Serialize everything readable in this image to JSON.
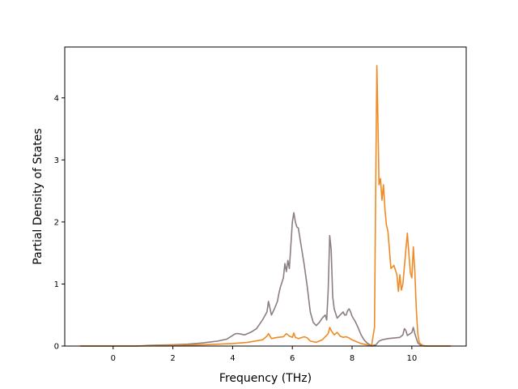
{
  "chart_data": {
    "type": "line",
    "title": "",
    "xlabel": "Frequency (THz)",
    "ylabel": "Partial Density of States",
    "xlim": [
      -1.62,
      11.82
    ],
    "ylim": [
      0,
      4.82
    ],
    "xticks": [
      0,
      2,
      4,
      6,
      8,
      10
    ],
    "yticks": [
      0,
      1,
      2,
      3,
      4
    ],
    "grid": false,
    "legend": "none",
    "series": [
      {
        "color": "#8c7e80",
        "points": [
          [
            -1.1,
            0
          ],
          [
            0.8,
            0
          ],
          [
            1.2,
            0.01
          ],
          [
            2.0,
            0.02
          ],
          [
            2.5,
            0.03
          ],
          [
            3.0,
            0.05
          ],
          [
            3.5,
            0.08
          ],
          [
            3.8,
            0.11
          ],
          [
            4.0,
            0.17
          ],
          [
            4.1,
            0.2
          ],
          [
            4.2,
            0.2
          ],
          [
            4.4,
            0.18
          ],
          [
            4.6,
            0.22
          ],
          [
            4.8,
            0.28
          ],
          [
            5.0,
            0.42
          ],
          [
            5.15,
            0.55
          ],
          [
            5.2,
            0.72
          ],
          [
            5.3,
            0.5
          ],
          [
            5.4,
            0.6
          ],
          [
            5.5,
            0.72
          ],
          [
            5.55,
            0.85
          ],
          [
            5.6,
            0.95
          ],
          [
            5.7,
            1.1
          ],
          [
            5.75,
            1.33
          ],
          [
            5.8,
            1.2
          ],
          [
            5.85,
            1.38
          ],
          [
            5.9,
            1.25
          ],
          [
            6.0,
            2.0
          ],
          [
            6.05,
            2.15
          ],
          [
            6.1,
            2.0
          ],
          [
            6.15,
            1.92
          ],
          [
            6.2,
            1.9
          ],
          [
            6.3,
            1.6
          ],
          [
            6.4,
            1.3
          ],
          [
            6.5,
            0.95
          ],
          [
            6.6,
            0.55
          ],
          [
            6.7,
            0.38
          ],
          [
            6.8,
            0.33
          ],
          [
            6.9,
            0.38
          ],
          [
            7.0,
            0.45
          ],
          [
            7.1,
            0.5
          ],
          [
            7.15,
            0.42
          ],
          [
            7.2,
            0.9
          ],
          [
            7.25,
            1.78
          ],
          [
            7.3,
            1.55
          ],
          [
            7.35,
            0.8
          ],
          [
            7.4,
            0.6
          ],
          [
            7.5,
            0.45
          ],
          [
            7.6,
            0.5
          ],
          [
            7.7,
            0.55
          ],
          [
            7.75,
            0.5
          ],
          [
            7.8,
            0.5
          ],
          [
            7.85,
            0.57
          ],
          [
            7.9,
            0.6
          ],
          [
            7.95,
            0.55
          ],
          [
            8.0,
            0.48
          ],
          [
            8.1,
            0.4
          ],
          [
            8.2,
            0.3
          ],
          [
            8.3,
            0.18
          ],
          [
            8.4,
            0.1
          ],
          [
            8.5,
            0.05
          ],
          [
            8.6,
            0.02
          ],
          [
            8.7,
            0.01
          ],
          [
            8.8,
            0.02
          ],
          [
            8.9,
            0.08
          ],
          [
            9.0,
            0.1
          ],
          [
            9.1,
            0.11
          ],
          [
            9.2,
            0.12
          ],
          [
            9.4,
            0.13
          ],
          [
            9.6,
            0.14
          ],
          [
            9.7,
            0.18
          ],
          [
            9.75,
            0.28
          ],
          [
            9.8,
            0.25
          ],
          [
            9.85,
            0.17
          ],
          [
            9.95,
            0.2
          ],
          [
            10.0,
            0.22
          ],
          [
            10.05,
            0.3
          ],
          [
            10.1,
            0.2
          ],
          [
            10.2,
            0.05
          ],
          [
            10.3,
            0.01
          ],
          [
            10.5,
            0
          ],
          [
            11.3,
            0
          ]
        ]
      },
      {
        "color": "#f08a24",
        "points": [
          [
            -1.1,
            0
          ],
          [
            0.8,
            0
          ],
          [
            2.0,
            0.01
          ],
          [
            3.0,
            0.02
          ],
          [
            4.0,
            0.04
          ],
          [
            4.5,
            0.06
          ],
          [
            5.0,
            0.1
          ],
          [
            5.15,
            0.16
          ],
          [
            5.2,
            0.2
          ],
          [
            5.3,
            0.12
          ],
          [
            5.5,
            0.14
          ],
          [
            5.7,
            0.15
          ],
          [
            5.8,
            0.2
          ],
          [
            5.9,
            0.16
          ],
          [
            6.0,
            0.14
          ],
          [
            6.05,
            0.21
          ],
          [
            6.1,
            0.14
          ],
          [
            6.2,
            0.12
          ],
          [
            6.4,
            0.15
          ],
          [
            6.5,
            0.13
          ],
          [
            6.6,
            0.08
          ],
          [
            6.8,
            0.06
          ],
          [
            7.0,
            0.1
          ],
          [
            7.1,
            0.15
          ],
          [
            7.2,
            0.2
          ],
          [
            7.25,
            0.3
          ],
          [
            7.3,
            0.25
          ],
          [
            7.4,
            0.18
          ],
          [
            7.5,
            0.22
          ],
          [
            7.6,
            0.16
          ],
          [
            7.7,
            0.14
          ],
          [
            7.8,
            0.15
          ],
          [
            7.9,
            0.13
          ],
          [
            8.0,
            0.1
          ],
          [
            8.1,
            0.08
          ],
          [
            8.3,
            0.04
          ],
          [
            8.5,
            0.02
          ],
          [
            8.65,
            0
          ],
          [
            8.75,
            0.3
          ],
          [
            8.8,
            3.1
          ],
          [
            8.83,
            4.52
          ],
          [
            8.87,
            3.5
          ],
          [
            8.9,
            2.6
          ],
          [
            8.95,
            2.7
          ],
          [
            9.0,
            2.35
          ],
          [
            9.05,
            2.6
          ],
          [
            9.1,
            2.2
          ],
          [
            9.15,
            1.95
          ],
          [
            9.2,
            1.85
          ],
          [
            9.3,
            1.25
          ],
          [
            9.4,
            1.3
          ],
          [
            9.5,
            1.15
          ],
          [
            9.55,
            0.88
          ],
          [
            9.6,
            1.15
          ],
          [
            9.65,
            0.9
          ],
          [
            9.7,
            1.0
          ],
          [
            9.8,
            1.55
          ],
          [
            9.85,
            1.82
          ],
          [
            9.9,
            1.5
          ],
          [
            9.95,
            1.18
          ],
          [
            10.0,
            1.1
          ],
          [
            10.05,
            1.6
          ],
          [
            10.1,
            1.2
          ],
          [
            10.15,
            0.6
          ],
          [
            10.2,
            0.2
          ],
          [
            10.25,
            0.05
          ],
          [
            10.4,
            0
          ],
          [
            11.3,
            0
          ]
        ]
      }
    ]
  }
}
